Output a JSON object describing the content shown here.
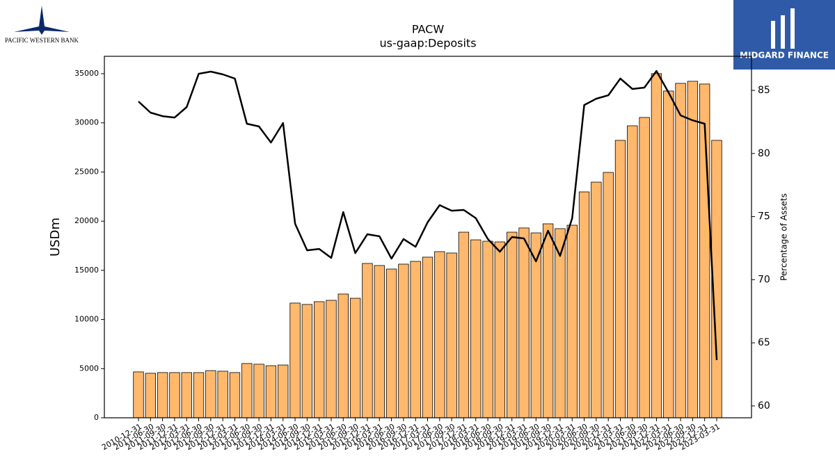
{
  "logos": {
    "left": "PACIFIC WESTERN BANK",
    "right": "MIDGARD FINANCE"
  },
  "chart_data": {
    "type": "bar-line",
    "title": "PACW",
    "subtitle": "us-gaap:Deposits",
    "y_label": "USDm",
    "y2_label": "Percentage of Assets",
    "categories": [
      "2010-12-31",
      "2011-06-30",
      "2011-09-30",
      "2011-12-31",
      "2012-03-31",
      "2012-06-30",
      "2012-09-30",
      "2012-12-31",
      "2013-03-31",
      "2013-06-30",
      "2013-09-30",
      "2013-12-31",
      "2014-03-31",
      "2014-06-30",
      "2014-09-30",
      "2014-12-31",
      "2015-03-31",
      "2015-06-30",
      "2015-09-30",
      "2015-12-31",
      "2016-03-31",
      "2016-06-30",
      "2016-09-30",
      "2016-12-31",
      "2017-03-31",
      "2017-06-30",
      "2017-09-30",
      "2017-12-31",
      "2018-03-31",
      "2018-06-30",
      "2018-09-30",
      "2018-12-31",
      "2019-03-31",
      "2019-06-30",
      "2019-09-30",
      "2019-12-31",
      "2020-03-31",
      "2020-06-30",
      "2020-09-30",
      "2020-12-31",
      "2021-03-31",
      "2021-06-30",
      "2021-09-30",
      "2021-12-31",
      "2022-03-31",
      "2022-06-30",
      "2022-09-30",
      "2022-12-31",
      "2023-03-31"
    ],
    "series": [
      {
        "color": "#ffb86c",
        "type": "bar",
        "values": [
          4670,
          4530,
          4600,
          4600,
          4600,
          4600,
          4800,
          4740,
          4600,
          5520,
          5450,
          5300,
          5370,
          11670,
          11530,
          11810,
          11950,
          12590,
          12160,
          15700,
          15490,
          15130,
          15630,
          15910,
          16340,
          16900,
          16760,
          18880,
          18100,
          17960,
          17890,
          18880,
          19310,
          18810,
          19730,
          19240,
          19590,
          22980,
          23970,
          24960,
          28220,
          29700,
          30550,
          35010,
          33240,
          34020,
          34230,
          33950,
          28220
        ]
      },
      {
        "color": "#000000",
        "type": "line",
        "axis": "y2",
        "values": [
          84.12,
          83.24,
          82.96,
          82.85,
          83.68,
          86.32,
          86.49,
          86.27,
          85.94,
          82.36,
          82.14,
          80.87,
          82.41,
          74.43,
          72.33,
          72.44,
          71.73,
          75.36,
          72.11,
          73.6,
          73.44,
          71.67,
          73.22,
          72.61,
          74.54,
          75.91,
          75.47,
          75.53,
          74.87,
          73.22,
          72.22,
          73.38,
          73.27,
          71.45,
          73.88,
          71.89,
          74.87,
          83.84,
          84.34,
          84.61,
          85.94,
          85.11,
          85.22,
          86.54,
          84.83,
          83.02,
          82.63,
          82.36,
          63.63
        ]
      }
    ],
    "ylim": [
      0,
      36770
    ],
    "yticks": [
      0,
      5000,
      10000,
      15000,
      20000,
      25000,
      30000,
      35000
    ],
    "y2lim": [
      59.06,
      87.7
    ],
    "y2ticks": [
      60,
      65,
      70,
      75,
      80,
      85
    ]
  }
}
